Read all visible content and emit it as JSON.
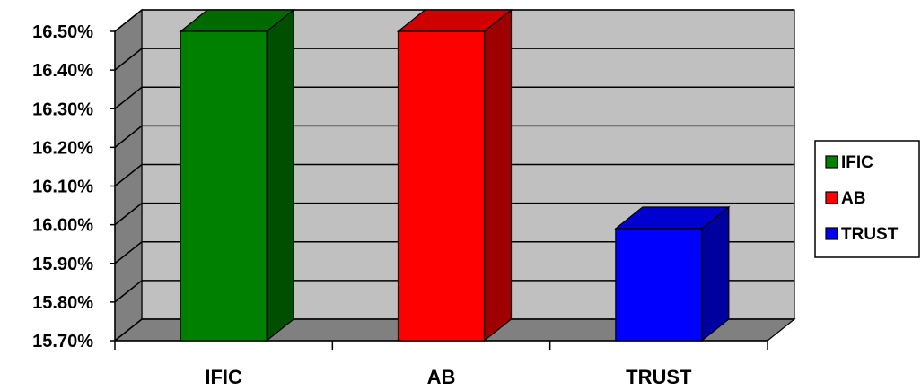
{
  "chart_data": {
    "type": "bar",
    "style": "3d-column",
    "categories": [
      "IFIC",
      "AB",
      "TRUST"
    ],
    "series": [
      {
        "name": "IFIC",
        "values": [
          16.5,
          null,
          null
        ],
        "color": "#008000"
      },
      {
        "name": "AB",
        "values": [
          null,
          16.5,
          null
        ],
        "color": "#ff0000"
      },
      {
        "name": "TRUST",
        "values": [
          null,
          null,
          15.99
        ],
        "color": "#0000ff"
      }
    ],
    "values": [
      16.5,
      16.5,
      15.99
    ],
    "colors": [
      "#008000",
      "#ff0000",
      "#0000ff"
    ],
    "ylim": [
      15.7,
      16.5
    ],
    "yticks": [
      {
        "value": 16.5,
        "label": "16.50%"
      },
      {
        "value": 16.4,
        "label": "16.40%"
      },
      {
        "value": 16.3,
        "label": "16.30%"
      },
      {
        "value": 16.2,
        "label": "16.20%"
      },
      {
        "value": 16.1,
        "label": "16.10%"
      },
      {
        "value": 16.0,
        "label": "16.00%"
      },
      {
        "value": 15.9,
        "label": "15.90%"
      },
      {
        "value": 15.8,
        "label": "15.80%"
      },
      {
        "value": 15.7,
        "label": "15.70%"
      }
    ],
    "legend": {
      "placement": "right",
      "entries": [
        "IFIC",
        "AB",
        "TRUST"
      ]
    },
    "grid": true,
    "title": "",
    "xlabel": "",
    "ylabel": ""
  }
}
